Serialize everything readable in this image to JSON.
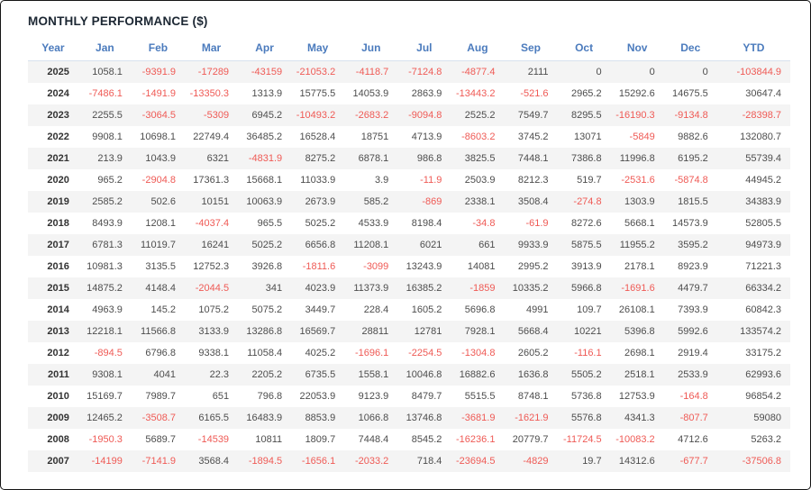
{
  "chart_data": {
    "type": "table",
    "title": "MONTHLY PERFORMANCE ($)",
    "columns": [
      "Year",
      "Jan",
      "Feb",
      "Mar",
      "Apr",
      "May",
      "Jun",
      "Jul",
      "Aug",
      "Sep",
      "Oct",
      "Nov",
      "Dec",
      "YTD"
    ],
    "rows": [
      {
        "year": "2025",
        "values": [
          "1058.1",
          "-9391.9",
          "-17289",
          "-43159",
          "-21053.2",
          "-4118.7",
          "-7124.8",
          "-4877.4",
          "2111",
          "0",
          "0",
          "0",
          "-103844.9"
        ]
      },
      {
        "year": "2024",
        "values": [
          "-7486.1",
          "-1491.9",
          "-13350.3",
          "1313.9",
          "15775.5",
          "14053.9",
          "2863.9",
          "-13443.2",
          "-521.6",
          "2965.2",
          "15292.6",
          "14675.5",
          "30647.4"
        ]
      },
      {
        "year": "2023",
        "values": [
          "2255.5",
          "-3064.5",
          "-5309",
          "6945.2",
          "-10493.2",
          "-2683.2",
          "-9094.8",
          "2525.2",
          "7549.7",
          "8295.5",
          "-16190.3",
          "-9134.8",
          "-28398.7"
        ]
      },
      {
        "year": "2022",
        "values": [
          "9908.1",
          "10698.1",
          "22749.4",
          "36485.2",
          "16528.4",
          "18751",
          "4713.9",
          "-8603.2",
          "3745.2",
          "13071",
          "-5849",
          "9882.6",
          "132080.7"
        ]
      },
      {
        "year": "2021",
        "values": [
          "213.9",
          "1043.9",
          "6321",
          "-4831.9",
          "8275.2",
          "6878.1",
          "986.8",
          "3825.5",
          "7448.1",
          "7386.8",
          "11996.8",
          "6195.2",
          "55739.4"
        ]
      },
      {
        "year": "2020",
        "values": [
          "965.2",
          "-2904.8",
          "17361.3",
          "15668.1",
          "11033.9",
          "3.9",
          "-11.9",
          "2503.9",
          "8212.3",
          "519.7",
          "-2531.6",
          "-5874.8",
          "44945.2"
        ]
      },
      {
        "year": "2019",
        "values": [
          "2585.2",
          "502.6",
          "10151",
          "10063.9",
          "2673.9",
          "585.2",
          "-869",
          "2338.1",
          "3508.4",
          "-274.8",
          "1303.9",
          "1815.5",
          "34383.9"
        ]
      },
      {
        "year": "2018",
        "values": [
          "8493.9",
          "1208.1",
          "-4037.4",
          "965.5",
          "5025.2",
          "4533.9",
          "8198.4",
          "-34.8",
          "-61.9",
          "8272.6",
          "5668.1",
          "14573.9",
          "52805.5"
        ]
      },
      {
        "year": "2017",
        "values": [
          "6781.3",
          "11019.7",
          "16241",
          "5025.2",
          "6656.8",
          "11208.1",
          "6021",
          "661",
          "9933.9",
          "5875.5",
          "11955.2",
          "3595.2",
          "94973.9"
        ]
      },
      {
        "year": "2016",
        "values": [
          "10981.3",
          "3135.5",
          "12752.3",
          "3926.8",
          "-1811.6",
          "-3099",
          "13243.9",
          "14081",
          "2995.2",
          "3913.9",
          "2178.1",
          "8923.9",
          "71221.3"
        ]
      },
      {
        "year": "2015",
        "values": [
          "14875.2",
          "4148.4",
          "-2044.5",
          "341",
          "4023.9",
          "11373.9",
          "16385.2",
          "-1859",
          "10335.2",
          "5966.8",
          "-1691.6",
          "4479.7",
          "66334.2"
        ]
      },
      {
        "year": "2014",
        "values": [
          "4963.9",
          "145.2",
          "1075.2",
          "5075.2",
          "3449.7",
          "228.4",
          "1605.2",
          "5696.8",
          "4991",
          "109.7",
          "26108.1",
          "7393.9",
          "60842.3"
        ]
      },
      {
        "year": "2013",
        "values": [
          "12218.1",
          "11566.8",
          "3133.9",
          "13286.8",
          "16569.7",
          "28811",
          "12781",
          "7928.1",
          "5668.4",
          "10221",
          "5396.8",
          "5992.6",
          "133574.2"
        ]
      },
      {
        "year": "2012",
        "values": [
          "-894.5",
          "6796.8",
          "9338.1",
          "11058.4",
          "4025.2",
          "-1696.1",
          "-2254.5",
          "-1304.8",
          "2605.2",
          "-116.1",
          "2698.1",
          "2919.4",
          "33175.2"
        ]
      },
      {
        "year": "2011",
        "values": [
          "9308.1",
          "4041",
          "22.3",
          "2205.2",
          "6735.5",
          "1558.1",
          "10046.8",
          "16882.6",
          "1636.8",
          "5505.2",
          "2518.1",
          "2533.9",
          "62993.6"
        ]
      },
      {
        "year": "2010",
        "values": [
          "15169.7",
          "7989.7",
          "651",
          "796.8",
          "22053.9",
          "9123.9",
          "8479.7",
          "5515.5",
          "8748.1",
          "5736.8",
          "12753.9",
          "-164.8",
          "96854.2"
        ]
      },
      {
        "year": "2009",
        "values": [
          "12465.2",
          "-3508.7",
          "6165.5",
          "16483.9",
          "8853.9",
          "1066.8",
          "13746.8",
          "-3681.9",
          "-1621.9",
          "5576.8",
          "4341.3",
          "-807.7",
          "59080"
        ]
      },
      {
        "year": "2008",
        "values": [
          "-1950.3",
          "5689.7",
          "-14539",
          "10811",
          "1809.7",
          "7448.4",
          "8545.2",
          "-16236.1",
          "20779.7",
          "-11724.5",
          "-10083.2",
          "4712.6",
          "5263.2"
        ]
      },
      {
        "year": "2007",
        "values": [
          "-14199",
          "-7141.9",
          "3568.4",
          "-1894.5",
          "-1656.1",
          "-2033.2",
          "718.4",
          "-23694.5",
          "-4829",
          "19.7",
          "14312.6",
          "-677.7",
          "-37506.8"
        ]
      }
    ],
    "colors": {
      "header_text": "#4b7bbd",
      "positive_text": "#4d4d4d",
      "negative_text": "#ef5a55",
      "title_text": "#1c2733",
      "alt_row_background": "#f4f4f4"
    },
    "layout": {
      "legend": "none",
      "grid": "alternating-row-shading"
    }
  }
}
